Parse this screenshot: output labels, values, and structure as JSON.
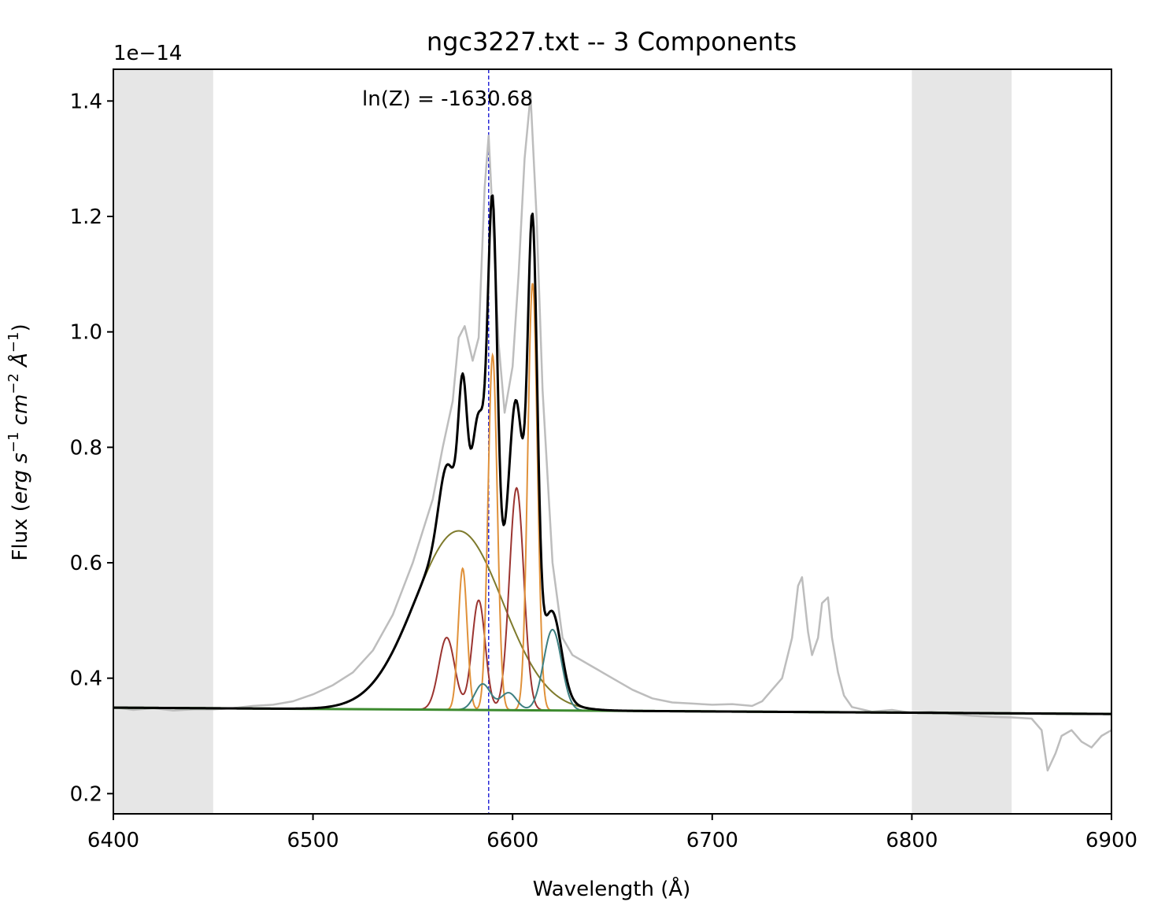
{
  "chart_data": {
    "type": "line",
    "title": "ngc3227.txt -- 3 Components",
    "annotation": "ln(Z) = -1630.68",
    "offset_text": "1e−14",
    "xlabel": "Wavelength (Å)",
    "ylabel_parts": {
      "prefix": "Flux (",
      "erg": "erg",
      "s": "s",
      "s_exp": "−1",
      "cm": "cm",
      "cm_exp": "−2",
      "ang": "Å",
      "ang_exp": "−1",
      "suffix": ")"
    },
    "xlim": [
      6400,
      6900
    ],
    "ylim": [
      0.165,
      1.455
    ],
    "y_scale_multiplier": 1e-14,
    "xticks": [
      6400,
      6500,
      6600,
      6700,
      6800,
      6900
    ],
    "yticks": [
      0.2,
      0.4,
      0.6,
      0.8,
      1.0,
      1.2,
      1.4
    ],
    "ytick_labels": [
      "0.2",
      "0.4",
      "0.6",
      "0.8",
      "1.0",
      "1.2",
      "1.4"
    ],
    "grid": false,
    "legend": "none",
    "shaded_regions": [
      {
        "x0": 6400,
        "x1": 6450,
        "color": "#e6e6e6"
      },
      {
        "x0": 6800,
        "x1": 6850,
        "color": "#e6e6e6"
      }
    ],
    "vline": {
      "x": 6588,
      "color": "#2828d8",
      "style": "dashed"
    },
    "continuum": {
      "color": "#3c8a2e",
      "x": [
        6400,
        6900
      ],
      "y": [
        0.349,
        0.338
      ]
    },
    "model_components": {
      "broad": {
        "color": "#7e7a2c",
        "amp": 0.31,
        "center": 6573,
        "sigma": 22
      },
      "comp1": {
        "color": "#9b3430",
        "lines": [
          {
            "amp": 0.125,
            "center": 6567,
            "sigma": 4.0
          },
          {
            "amp": 0.19,
            "center": 6583,
            "sigma": 3.3
          },
          {
            "amp": 0.385,
            "center": 6602,
            "sigma": 3.6
          }
        ]
      },
      "comp2": {
        "color": "#e0913a",
        "lines": [
          {
            "amp": 0.245,
            "center": 6575,
            "sigma": 2.2
          },
          {
            "amp": 0.615,
            "center": 6590,
            "sigma": 2.3
          },
          {
            "amp": 0.74,
            "center": 6610,
            "sigma": 2.4
          }
        ]
      },
      "comp3": {
        "color": "#3d7f80",
        "lines": [
          {
            "amp": 0.045,
            "center": 6585,
            "sigma": 4.0
          },
          {
            "amp": 0.03,
            "center": 6598,
            "sigma": 4.0
          },
          {
            "amp": 0.14,
            "center": 6620,
            "sigma": 4.5
          }
        ]
      }
    },
    "total_model": {
      "color": "#000000",
      "x_range": [
        6400,
        6900
      ]
    },
    "observed": {
      "color": "#bdbdbd",
      "x": [
        6400,
        6410,
        6420,
        6430,
        6440,
        6450,
        6460,
        6470,
        6480,
        6490,
        6500,
        6510,
        6520,
        6530,
        6540,
        6550,
        6560,
        6565,
        6570,
        6573,
        6576,
        6580,
        6583,
        6586,
        6588,
        6590,
        6593,
        6596,
        6600,
        6603,
        6606,
        6609,
        6612,
        6615,
        6620,
        6625,
        6630,
        6640,
        6650,
        6660,
        6670,
        6680,
        6690,
        6700,
        6710,
        6720,
        6725,
        6730,
        6735,
        6740,
        6743,
        6745,
        6748,
        6750,
        6753,
        6755,
        6758,
        6760,
        6763,
        6766,
        6770,
        6780,
        6790,
        6800,
        6810,
        6820,
        6830,
        6840,
        6850,
        6860,
        6865,
        6868,
        6872,
        6875,
        6880,
        6885,
        6890,
        6895,
        6900
      ],
      "y": [
        0.35,
        0.345,
        0.348,
        0.344,
        0.346,
        0.346,
        0.348,
        0.352,
        0.354,
        0.36,
        0.372,
        0.388,
        0.41,
        0.448,
        0.51,
        0.6,
        0.71,
        0.8,
        0.88,
        0.99,
        1.01,
        0.95,
        0.99,
        1.25,
        1.34,
        1.2,
        0.98,
        0.86,
        0.94,
        1.1,
        1.3,
        1.41,
        1.2,
        0.9,
        0.6,
        0.47,
        0.44,
        0.42,
        0.4,
        0.38,
        0.365,
        0.358,
        0.356,
        0.354,
        0.355,
        0.352,
        0.36,
        0.38,
        0.4,
        0.47,
        0.56,
        0.575,
        0.48,
        0.44,
        0.47,
        0.53,
        0.54,
        0.47,
        0.41,
        0.37,
        0.35,
        0.342,
        0.345,
        0.34,
        0.342,
        0.338,
        0.335,
        0.333,
        0.332,
        0.33,
        0.31,
        0.24,
        0.27,
        0.3,
        0.31,
        0.29,
        0.28,
        0.3,
        0.31
      ]
    }
  }
}
